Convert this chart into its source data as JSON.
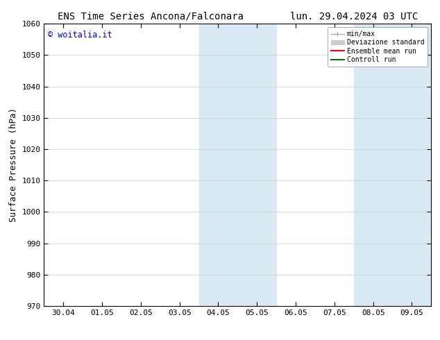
{
  "title_left": "ENS Time Series Ancona/Falconara",
  "title_right": "lun. 29.04.2024 03 UTC",
  "ylabel": "Surface Pressure (hPa)",
  "ylim": [
    970,
    1060
  ],
  "yticks": [
    970,
    980,
    990,
    1000,
    1010,
    1020,
    1030,
    1040,
    1050,
    1060
  ],
  "xtick_labels": [
    "30.04",
    "01.05",
    "02.05",
    "03.05",
    "04.05",
    "05.05",
    "06.05",
    "07.05",
    "08.05",
    "09.05"
  ],
  "xtick_positions": [
    0,
    1,
    2,
    3,
    4,
    5,
    6,
    7,
    8,
    9
  ],
  "shaded_bands": [
    {
      "xmin": 3.5,
      "xmax": 5.5,
      "color": "#daeaf5"
    },
    {
      "xmin": 7.5,
      "xmax": 9.5,
      "color": "#daeaf5"
    }
  ],
  "watermark_text": "© woitalia.it",
  "watermark_color": "#0000cc",
  "background_color": "#ffffff",
  "plot_bg_color": "#ffffff",
  "grid_color": "#cccccc",
  "title_fontsize": 10,
  "tick_fontsize": 8,
  "ylabel_fontsize": 9,
  "watermark_fontsize": 8.5,
  "xmin": -0.5,
  "xmax": 9.5,
  "legend_fontsize": 7,
  "legend_minmax_color": "#aaaaaa",
  "legend_dev_color": "#cccccc",
  "legend_ens_color": "#ff0000",
  "legend_ctrl_color": "#007700"
}
